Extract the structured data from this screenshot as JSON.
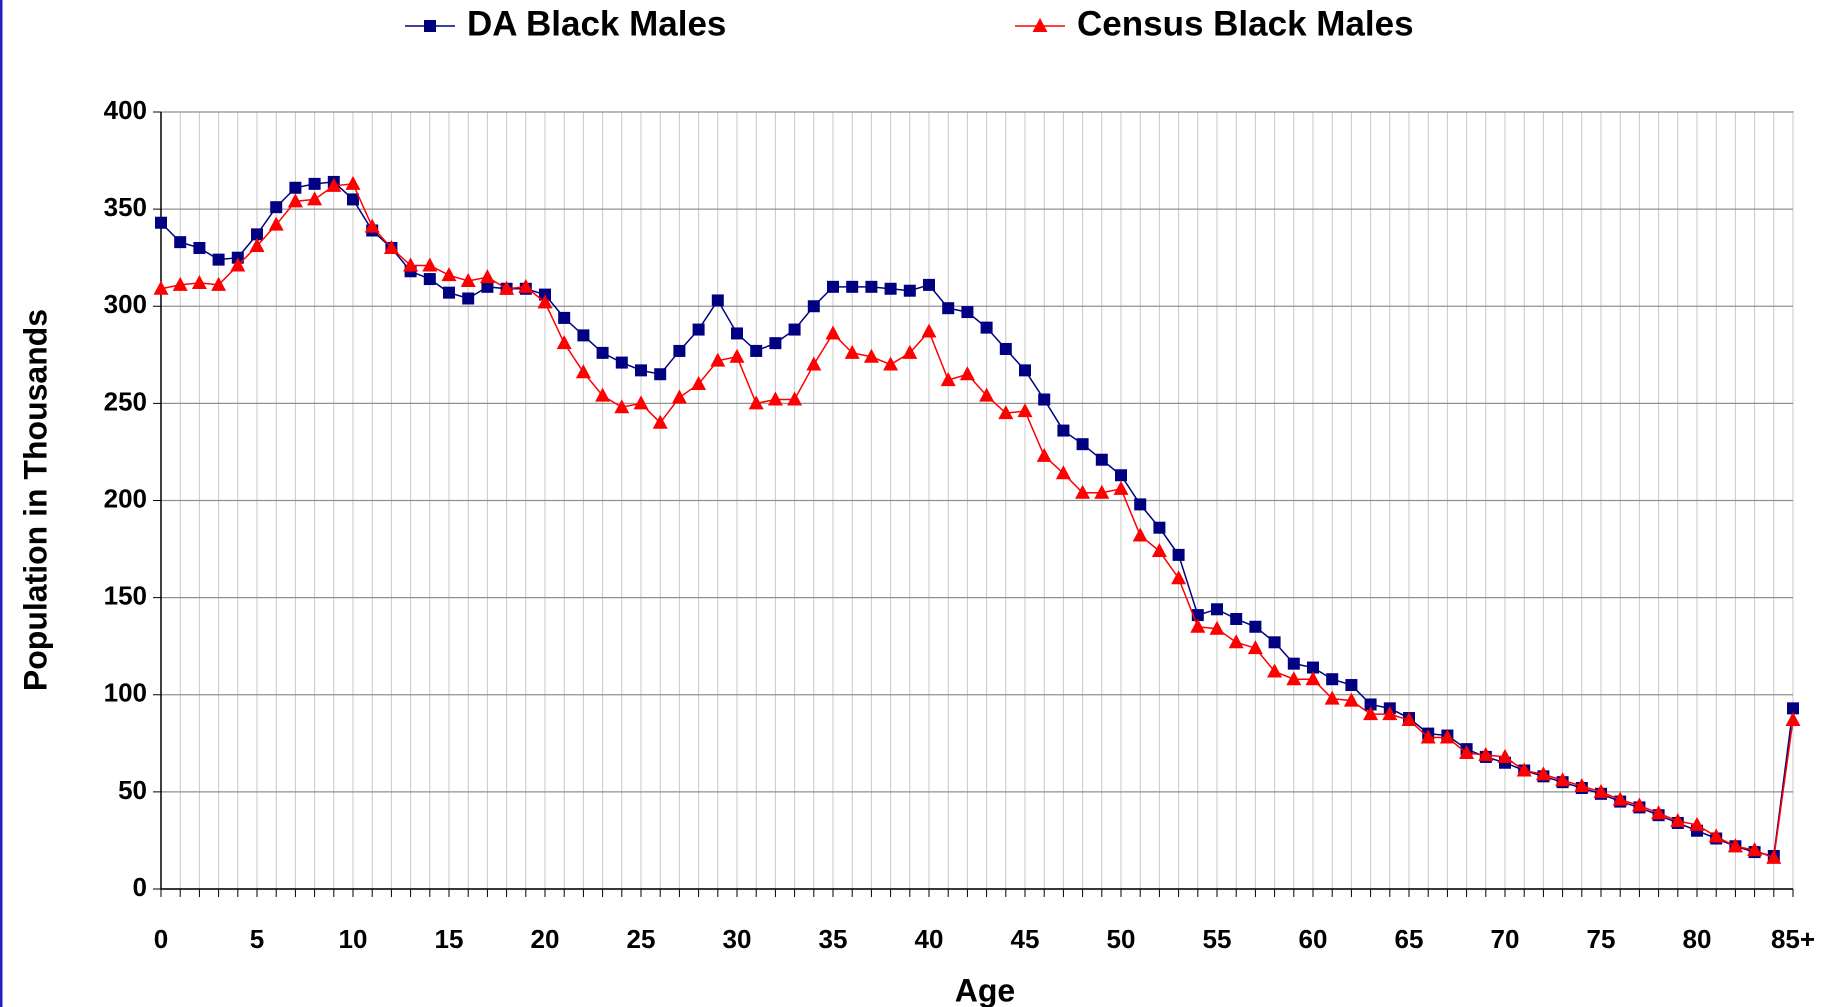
{
  "chart_data": {
    "type": "line",
    "xlabel": "Age",
    "ylabel": "Population in Thousands",
    "categories": [
      "0",
      null,
      null,
      null,
      null,
      "5",
      null,
      null,
      null,
      null,
      "10",
      null,
      null,
      null,
      null,
      "15",
      null,
      null,
      null,
      null,
      "20",
      null,
      null,
      null,
      null,
      "25",
      null,
      null,
      null,
      null,
      "30",
      null,
      null,
      null,
      null,
      "35",
      null,
      null,
      null,
      null,
      "40",
      null,
      null,
      null,
      null,
      "45",
      null,
      null,
      null,
      null,
      "50",
      null,
      null,
      null,
      null,
      "55",
      null,
      null,
      null,
      null,
      "60",
      null,
      null,
      null,
      null,
      "65",
      null,
      null,
      null,
      null,
      "70",
      null,
      null,
      null,
      null,
      "75",
      null,
      null,
      null,
      null,
      "80",
      null,
      null,
      null,
      null,
      "85+"
    ],
    "series": [
      {
        "name": "DA Black Males",
        "color": "#000080",
        "marker": "square",
        "values": [
          343,
          333,
          330,
          324,
          325,
          337,
          351,
          361,
          363,
          364,
          355,
          339,
          330,
          318,
          314,
          307,
          304,
          310,
          309,
          309,
          306,
          294,
          285,
          276,
          271,
          267,
          265,
          277,
          288,
          303,
          286,
          277,
          281,
          288,
          300,
          310,
          310,
          310,
          309,
          308,
          311,
          299,
          297,
          289,
          278,
          267,
          252,
          236,
          229,
          221,
          213,
          198,
          186,
          172,
          141,
          144,
          139,
          135,
          127,
          116,
          114,
          108,
          105,
          95,
          93,
          88,
          80,
          79,
          72,
          68,
          65,
          61,
          58,
          55,
          52,
          49,
          45,
          42,
          38,
          34,
          30,
          26,
          22,
          19,
          17,
          93
        ]
      },
      {
        "name": "Census Black Males",
        "color": "#ff0000",
        "marker": "triangle",
        "values": [
          309,
          311,
          312,
          311,
          321,
          331,
          342,
          354,
          355,
          362,
          363,
          341,
          330,
          321,
          321,
          316,
          313,
          315,
          309,
          310,
          302,
          281,
          266,
          254,
          248,
          250,
          240,
          253,
          260,
          272,
          274,
          250,
          252,
          252,
          270,
          286,
          276,
          274,
          270,
          276,
          287,
          262,
          265,
          254,
          245,
          246,
          223,
          214,
          204,
          204,
          206,
          182,
          174,
          160,
          135,
          134,
          127,
          124,
          112,
          108,
          108,
          98,
          97,
          90,
          90,
          87,
          78,
          78,
          70,
          69,
          68,
          61,
          59,
          56,
          53,
          50,
          46,
          43,
          39,
          35,
          33,
          27,
          22,
          20,
          16,
          87
        ]
      }
    ],
    "ylim": [
      0,
      400
    ],
    "yticks": [
      0,
      50,
      100,
      150,
      200,
      250,
      300,
      350,
      400
    ],
    "grid": true,
    "legend": "top"
  }
}
